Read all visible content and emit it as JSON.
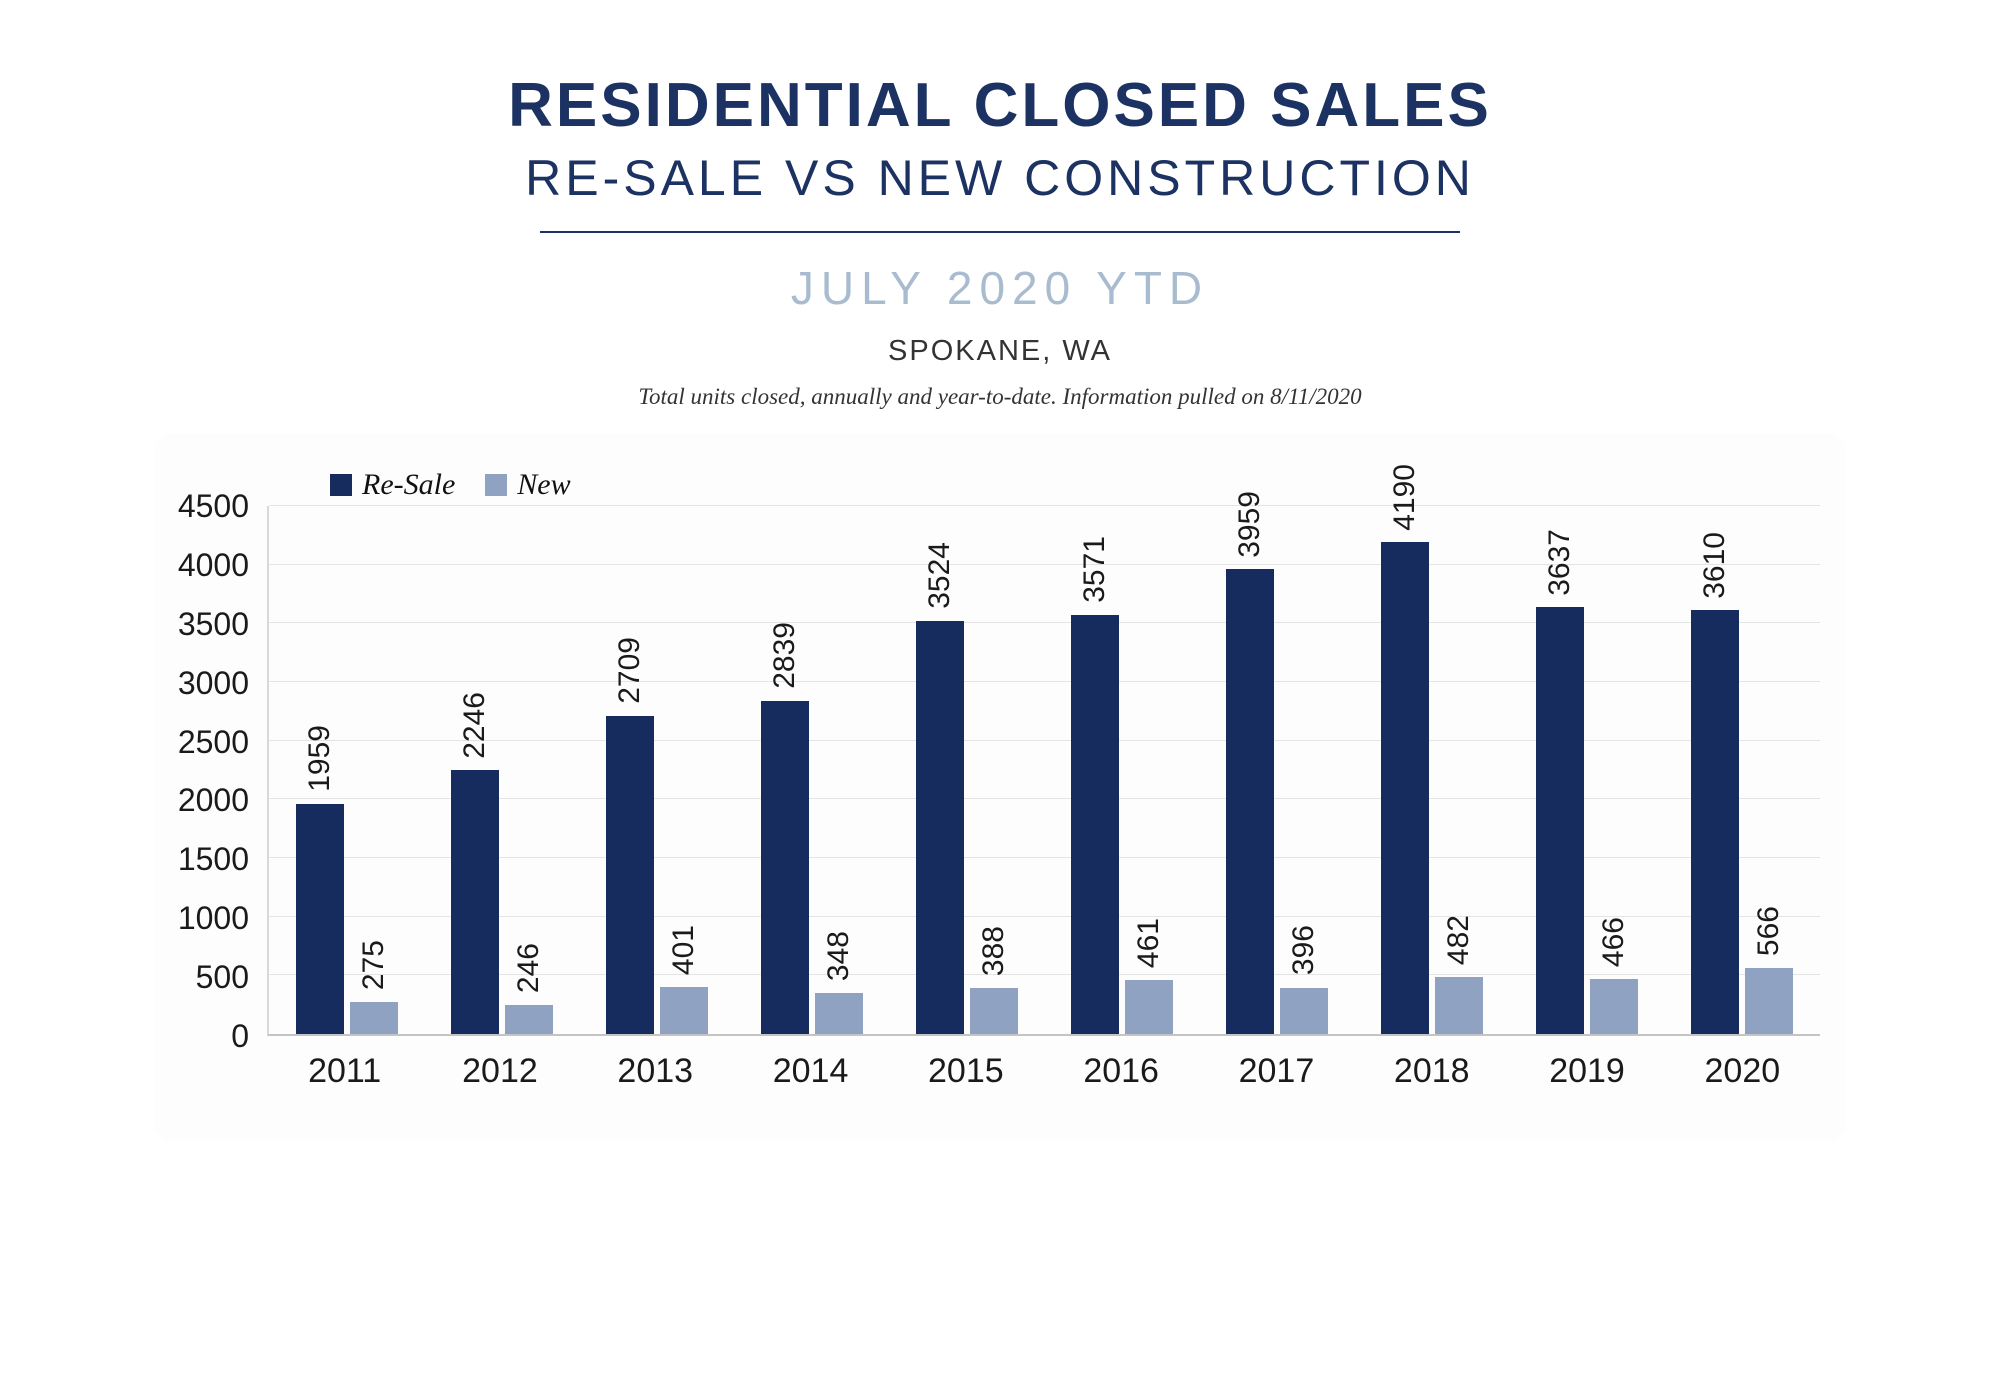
{
  "header": {
    "title": "RESIDENTIAL CLOSED SALES",
    "subtitle": "RE-SALE VS NEW CONSTRUCTION",
    "period": "JULY 2020 YTD",
    "location": "SPOKANE, WA",
    "note": "Total units closed, annually and year-to-date.  Information pulled on 8/11/2020"
  },
  "chart_data": {
    "type": "bar",
    "title": "Residential Closed Sales — Re-Sale vs New Construction — July 2020 YTD — Spokane, WA",
    "categories": [
      "2011",
      "2012",
      "2013",
      "2014",
      "2015",
      "2016",
      "2017",
      "2018",
      "2019",
      "2020"
    ],
    "series": [
      {
        "name": "Re-Sale",
        "color": "#162b5e",
        "values": [
          1959,
          2246,
          2709,
          2839,
          3524,
          3571,
          3959,
          4190,
          3637,
          3610
        ]
      },
      {
        "name": "New",
        "color": "#8fa2c1",
        "values": [
          275,
          246,
          401,
          348,
          388,
          461,
          396,
          482,
          466,
          566
        ]
      }
    ],
    "xlabel": "",
    "ylabel": "",
    "ylim": [
      0,
      4500
    ],
    "ytick_interval": 500,
    "grid": true,
    "legend_position": "top-left",
    "bar_value_label_rotation": 90
  }
}
